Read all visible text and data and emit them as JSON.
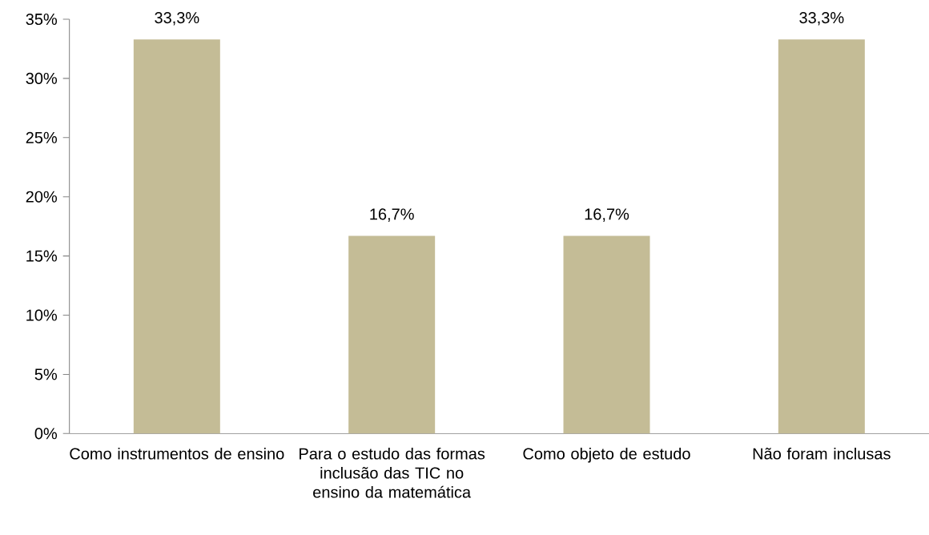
{
  "chart_data": {
    "type": "bar",
    "categories": [
      "Como instrumentos de ensino",
      "Para o estudo das formas inclusão das TIC no ensino da matemática",
      "Como objeto de estudo",
      "Não foram inclusas"
    ],
    "values": [
      33.3,
      16.7,
      16.7,
      33.3
    ],
    "value_labels": [
      "33,3%",
      "16,7%",
      "16,7%",
      "33,3%"
    ],
    "color": "#c4bc96",
    "ylim": [
      0,
      35
    ],
    "yticks": [
      {
        "value": 0,
        "label": "0%"
      },
      {
        "value": 5,
        "label": "5%"
      },
      {
        "value": 10,
        "label": "10%"
      },
      {
        "value": 15,
        "label": "15%"
      },
      {
        "value": 20,
        "label": "20%"
      },
      {
        "value": 25,
        "label": "25%"
      },
      {
        "value": 30,
        "label": "30%"
      },
      {
        "value": 35,
        "label": "35%"
      }
    ],
    "grid": false
  }
}
